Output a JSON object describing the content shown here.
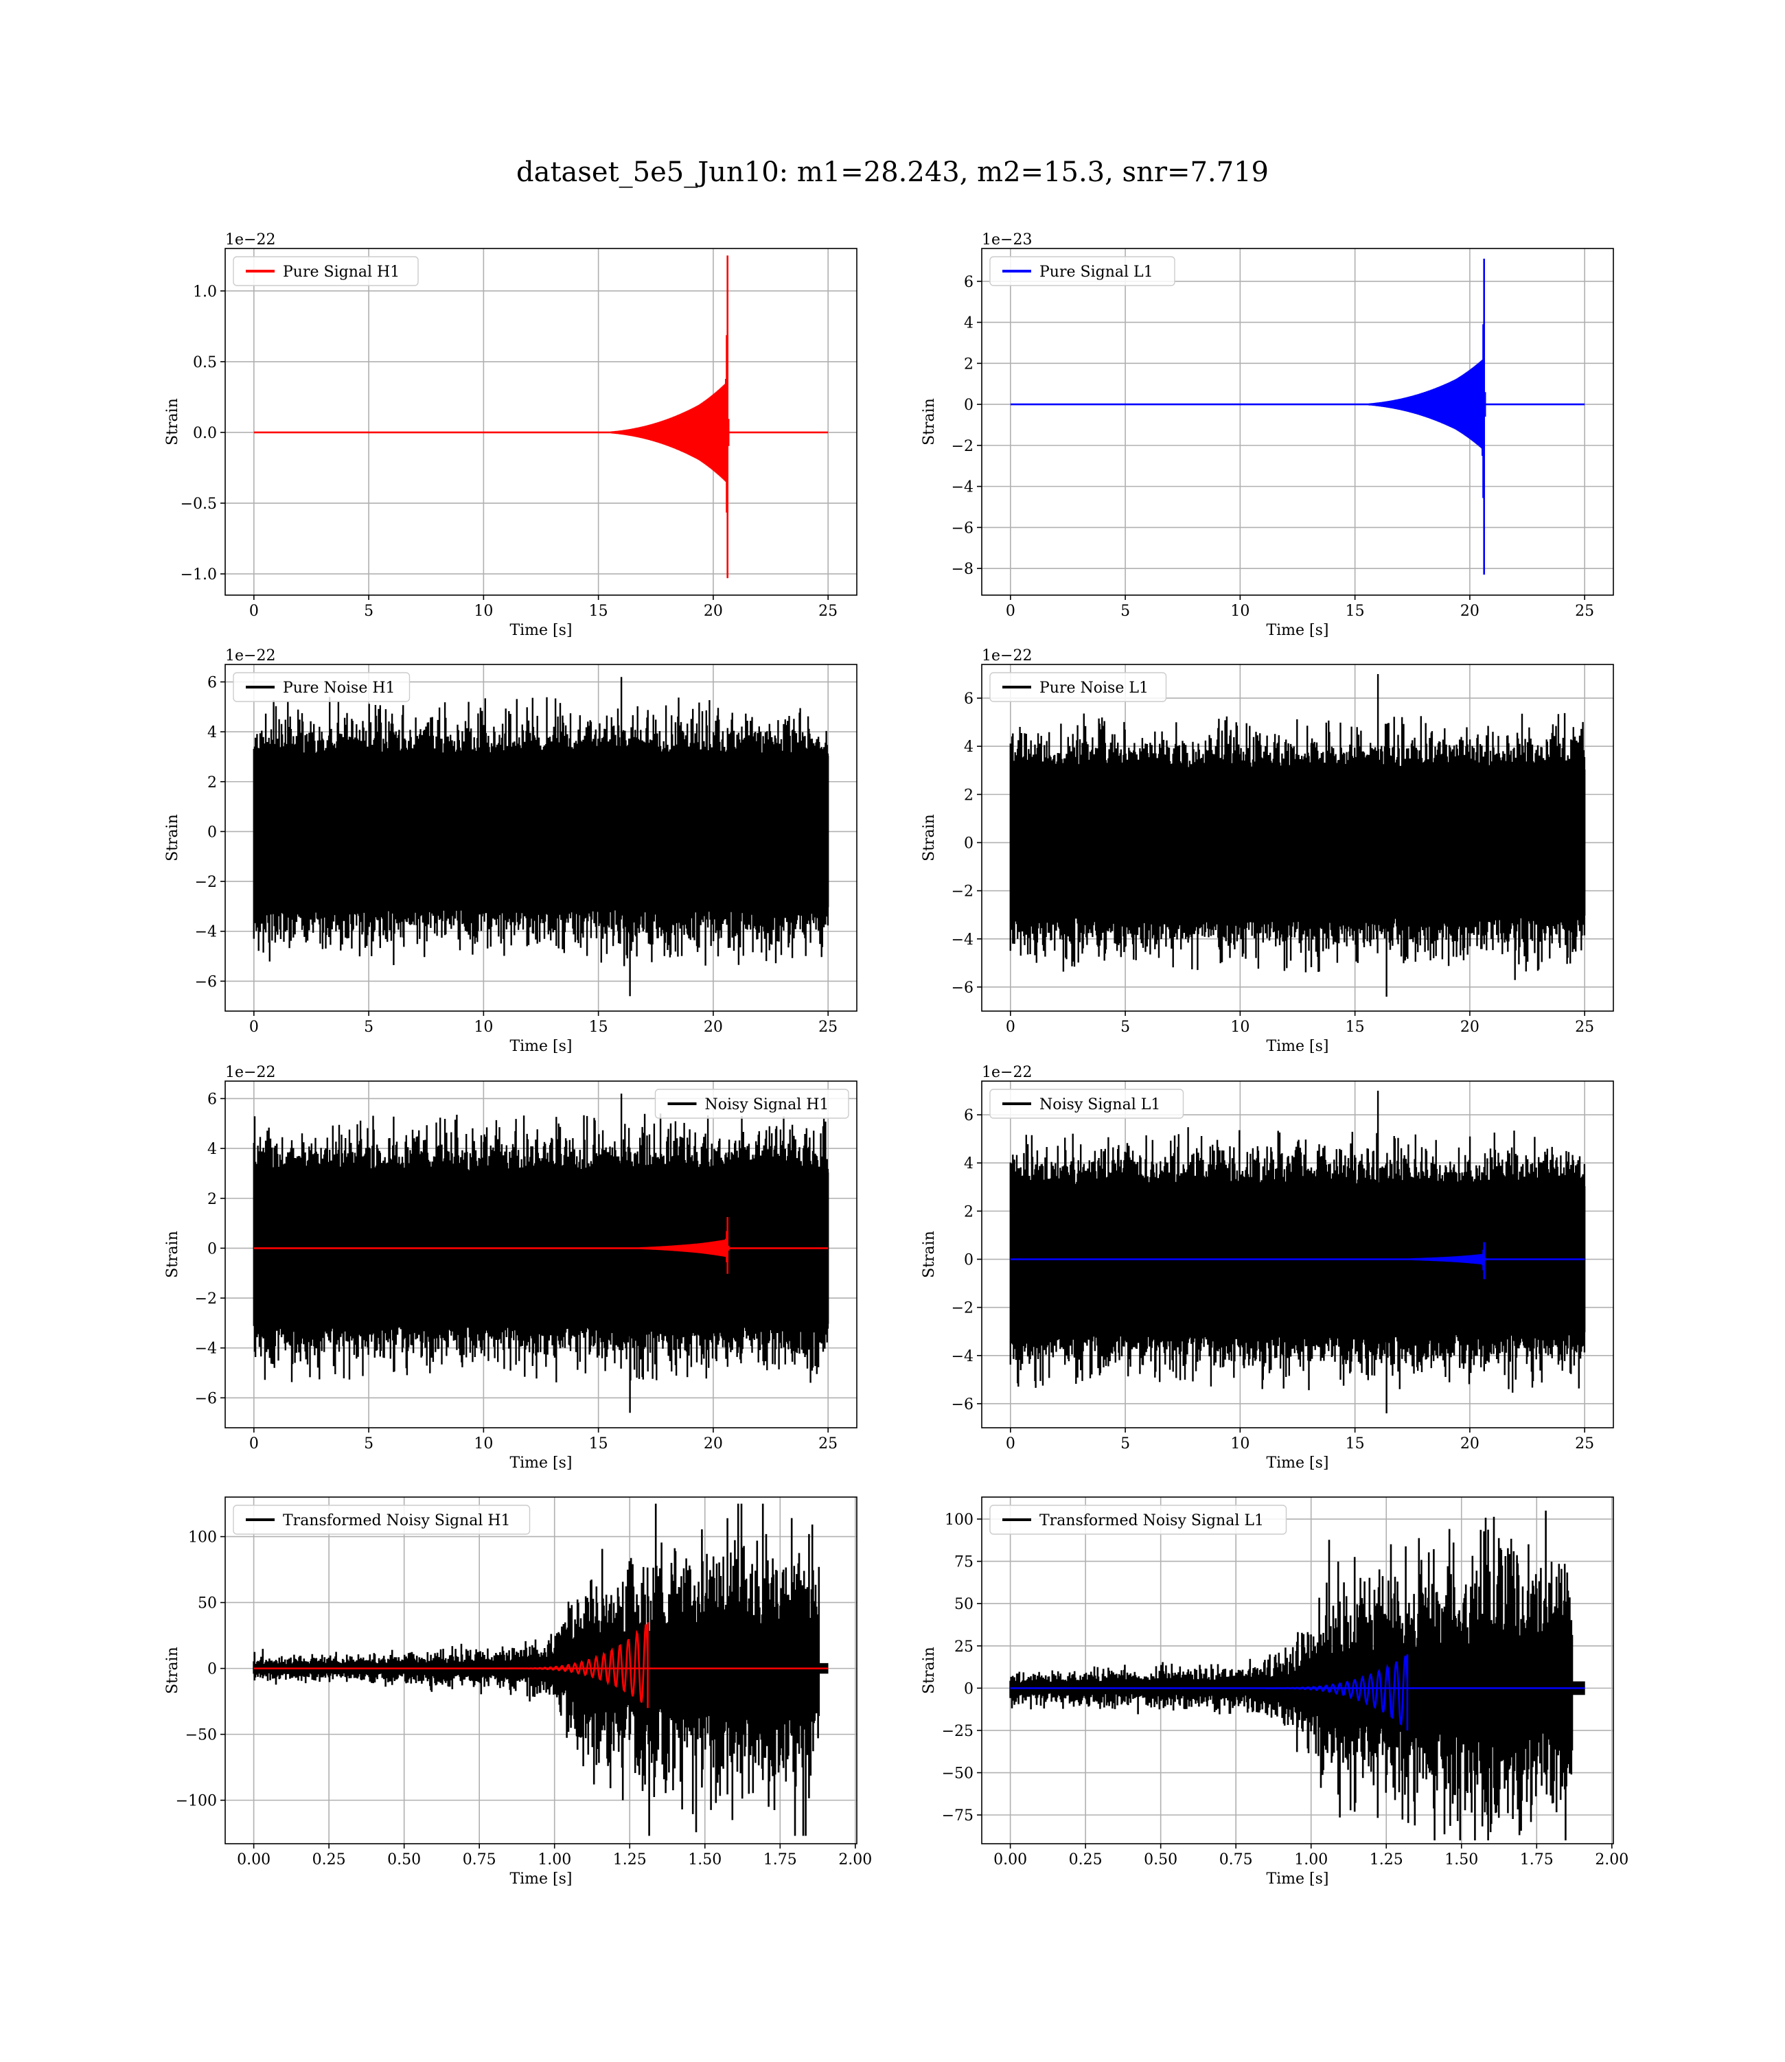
{
  "figure": {
    "title": "dataset_5e5_Jun10: m1=28.243, m2=15.3, snr=7.719"
  },
  "colors": {
    "h1_signal": "#ff0000",
    "l1_signal": "#0000ff",
    "noise": "#000000",
    "grid": "#b0b0b0",
    "background": "#ffffff"
  },
  "chart_data": [
    {
      "id": "pure-signal-h1",
      "type": "line",
      "xlabel": "Time [s]",
      "ylabel": "Strain",
      "offset_text": "1e−22",
      "xlim": [
        -1.25,
        26.25
      ],
      "ylim": [
        -1.15,
        1.3
      ],
      "xticks": [
        0,
        5,
        10,
        15,
        20,
        25
      ],
      "xtick_labels": [
        "0",
        "5",
        "10",
        "15",
        "20",
        "25"
      ],
      "yticks": [
        -1.0,
        -0.5,
        0.0,
        0.5,
        1.0
      ],
      "ytick_labels": [
        "−1.0",
        "−0.5",
        "0.0",
        "0.5",
        "1.0"
      ],
      "grid": true,
      "legend_loc": "top-left",
      "series": [
        {
          "name": "Pure Signal H1",
          "color": "#ff0000",
          "kind": "chirp",
          "x_start": 0,
          "x_end": 25,
          "merger_t": 20.62,
          "peak_pos": 1.25,
          "peak_neg": -1.03,
          "inspiral_amp": 0.32,
          "buildup_start": 14.5
        }
      ]
    },
    {
      "id": "pure-signal-l1",
      "type": "line",
      "xlabel": "Time [s]",
      "ylabel": "Strain",
      "offset_text": "1e−23",
      "xlim": [
        -1.25,
        26.25
      ],
      "ylim": [
        -9.3,
        7.6
      ],
      "xticks": [
        0,
        5,
        10,
        15,
        20,
        25
      ],
      "xtick_labels": [
        "0",
        "5",
        "10",
        "15",
        "20",
        "25"
      ],
      "yticks": [
        -8,
        -6,
        -4,
        -2,
        0,
        2,
        4,
        6
      ],
      "ytick_labels": [
        "−8",
        "−6",
        "−4",
        "−2",
        "0",
        "2",
        "4",
        "6"
      ],
      "grid": true,
      "legend_loc": "top-left",
      "series": [
        {
          "name": "Pure Signal L1",
          "color": "#0000ff",
          "kind": "chirp",
          "x_start": 0,
          "x_end": 25,
          "merger_t": 20.62,
          "peak_pos": 7.1,
          "peak_neg": -8.3,
          "inspiral_amp": 2.0,
          "buildup_start": 14.5
        }
      ]
    },
    {
      "id": "pure-noise-h1",
      "type": "line",
      "xlabel": "Time [s]",
      "ylabel": "Strain",
      "offset_text": "1e−22",
      "xlim": [
        -1.25,
        26.25
      ],
      "ylim": [
        -7.2,
        6.7
      ],
      "xticks": [
        0,
        5,
        10,
        15,
        20,
        25
      ],
      "xtick_labels": [
        "0",
        "5",
        "10",
        "15",
        "20",
        "25"
      ],
      "yticks": [
        -6,
        -4,
        -2,
        0,
        2,
        4,
        6
      ],
      "ytick_labels": [
        "−6",
        "−4",
        "−2",
        "0",
        "2",
        "4",
        "6"
      ],
      "grid": true,
      "legend_loc": "top-left",
      "series": [
        {
          "name": "Pure Noise H1",
          "color": "#000000",
          "kind": "noise",
          "x_start": 0,
          "x_end": 25,
          "core": 3.0,
          "max": 6.2,
          "min": -6.6
        }
      ]
    },
    {
      "id": "pure-noise-l1",
      "type": "line",
      "xlabel": "Time [s]",
      "ylabel": "Strain",
      "offset_text": "1e−22",
      "xlim": [
        -1.25,
        26.25
      ],
      "ylim": [
        -7.0,
        7.4
      ],
      "xticks": [
        0,
        5,
        10,
        15,
        20,
        25
      ],
      "xtick_labels": [
        "0",
        "5",
        "10",
        "15",
        "20",
        "25"
      ],
      "yticks": [
        -6,
        -4,
        -2,
        0,
        2,
        4,
        6
      ],
      "ytick_labels": [
        "−6",
        "−4",
        "−2",
        "0",
        "2",
        "4",
        "6"
      ],
      "grid": true,
      "legend_loc": "top-left",
      "series": [
        {
          "name": "Pure Noise L1",
          "color": "#000000",
          "kind": "noise",
          "x_start": 0,
          "x_end": 25,
          "core": 3.0,
          "max": 7.0,
          "min": -6.4
        }
      ]
    },
    {
      "id": "noisy-signal-h1",
      "type": "line",
      "xlabel": "Time [s]",
      "ylabel": "Strain",
      "offset_text": "1e−22",
      "xlim": [
        -1.25,
        26.25
      ],
      "ylim": [
        -7.2,
        6.7
      ],
      "xticks": [
        0,
        5,
        10,
        15,
        20,
        25
      ],
      "xtick_labels": [
        "0",
        "5",
        "10",
        "15",
        "20",
        "25"
      ],
      "yticks": [
        -6,
        -4,
        -2,
        0,
        2,
        4,
        6
      ],
      "ytick_labels": [
        "−6",
        "−4",
        "−2",
        "0",
        "2",
        "4",
        "6"
      ],
      "grid": true,
      "legend_loc": "top-right",
      "series": [
        {
          "name": "Noisy Signal H1",
          "color": "#000000",
          "kind": "noise",
          "x_start": 0,
          "x_end": 25,
          "core": 3.0,
          "max": 6.2,
          "min": -6.6
        },
        {
          "color": "#ff0000",
          "kind": "chirp",
          "x_start": 0,
          "x_end": 25,
          "merger_t": 20.62,
          "peak_pos": 1.25,
          "peak_neg": -1.03,
          "inspiral_amp": 0.32,
          "buildup_start": 14.5
        }
      ]
    },
    {
      "id": "noisy-signal-l1",
      "type": "line",
      "xlabel": "Time [s]",
      "ylabel": "Strain",
      "offset_text": "1e−22",
      "xlim": [
        -1.25,
        26.25
      ],
      "ylim": [
        -7.0,
        7.4
      ],
      "xticks": [
        0,
        5,
        10,
        15,
        20,
        25
      ],
      "xtick_labels": [
        "0",
        "5",
        "10",
        "15",
        "20",
        "25"
      ],
      "yticks": [
        -6,
        -4,
        -2,
        0,
        2,
        4,
        6
      ],
      "ytick_labels": [
        "−6",
        "−4",
        "−2",
        "0",
        "2",
        "4",
        "6"
      ],
      "grid": true,
      "legend_loc": "top-left",
      "series": [
        {
          "name": "Noisy Signal L1",
          "color": "#000000",
          "kind": "noise",
          "x_start": 0,
          "x_end": 25,
          "core": 3.0,
          "max": 7.0,
          "min": -6.4
        },
        {
          "color": "#0000ff",
          "kind": "chirp",
          "x_start": 0,
          "x_end": 25,
          "merger_t": 20.62,
          "peak_pos": 0.71,
          "peak_neg": -0.83,
          "inspiral_amp": 0.2,
          "buildup_start": 14.5
        }
      ]
    },
    {
      "id": "transformed-noisy-signal-h1",
      "type": "line",
      "xlabel": "Time [s]",
      "ylabel": "Strain",
      "offset_text": "",
      "xlim": [
        -0.095,
        2.005
      ],
      "ylim": [
        -133,
        130
      ],
      "xticks": [
        0.0,
        0.25,
        0.5,
        0.75,
        1.0,
        1.25,
        1.5,
        1.75,
        2.0
      ],
      "xtick_labels": [
        "0.00",
        "0.25",
        "0.50",
        "0.75",
        "1.00",
        "1.25",
        "1.50",
        "1.75",
        "2.00"
      ],
      "yticks": [
        -100,
        -50,
        0,
        50,
        100
      ],
      "ytick_labels": [
        "−100",
        "−50",
        "0",
        "50",
        "100"
      ],
      "grid": true,
      "legend_loc": "top-left",
      "series": [
        {
          "name": "Transformed Noisy Signal H1",
          "color": "#000000",
          "kind": "tnoise",
          "x_start": 0,
          "x_end": 1.91,
          "cutoff": 1.88,
          "env": [
            [
              0,
              5
            ],
            [
              0.4,
              6
            ],
            [
              0.8,
              8
            ],
            [
              1.0,
              14
            ],
            [
              1.1,
              42
            ],
            [
              1.35,
              48
            ],
            [
              1.6,
              58
            ],
            [
              1.88,
              55
            ]
          ],
          "max": 125,
          "min": -127
        },
        {
          "color": "#ff0000",
          "kind": "tchirp",
          "x_start": 0,
          "x_end": 1.91,
          "merger_t": 1.31,
          "peak_pos": 35,
          "peak_neg": -30,
          "start": 0.85
        }
      ]
    },
    {
      "id": "transformed-noisy-signal-l1",
      "type": "line",
      "xlabel": "Time [s]",
      "ylabel": "Strain",
      "offset_text": "",
      "xlim": [
        -0.095,
        2.005
      ],
      "ylim": [
        -92,
        113
      ],
      "xticks": [
        0.0,
        0.25,
        0.5,
        0.75,
        1.0,
        1.25,
        1.5,
        1.75,
        2.0
      ],
      "xtick_labels": [
        "0.00",
        "0.25",
        "0.50",
        "0.75",
        "1.00",
        "1.25",
        "1.50",
        "1.75",
        "2.00"
      ],
      "yticks": [
        -75,
        -50,
        -25,
        0,
        25,
        50,
        75,
        100
      ],
      "ytick_labels": [
        "−75",
        "−50",
        "−25",
        "0",
        "25",
        "50",
        "75",
        "100"
      ],
      "grid": true,
      "legend_loc": "top-left",
      "series": [
        {
          "name": "Transformed Noisy Signal L1",
          "color": "#000000",
          "kind": "tnoise",
          "x_start": 0,
          "x_end": 1.91,
          "cutoff": 1.87,
          "env": [
            [
              0,
              5
            ],
            [
              0.4,
              6
            ],
            [
              0.8,
              8
            ],
            [
              0.95,
              14
            ],
            [
              1.05,
              30
            ],
            [
              1.3,
              40
            ],
            [
              1.6,
              48
            ],
            [
              1.87,
              42
            ]
          ],
          "max": 105,
          "min": -90
        },
        {
          "color": "#0000ff",
          "kind": "tchirp",
          "x_start": 0,
          "x_end": 1.91,
          "merger_t": 1.32,
          "peak_pos": 20,
          "peak_neg": -25,
          "start": 0.85
        }
      ]
    }
  ]
}
